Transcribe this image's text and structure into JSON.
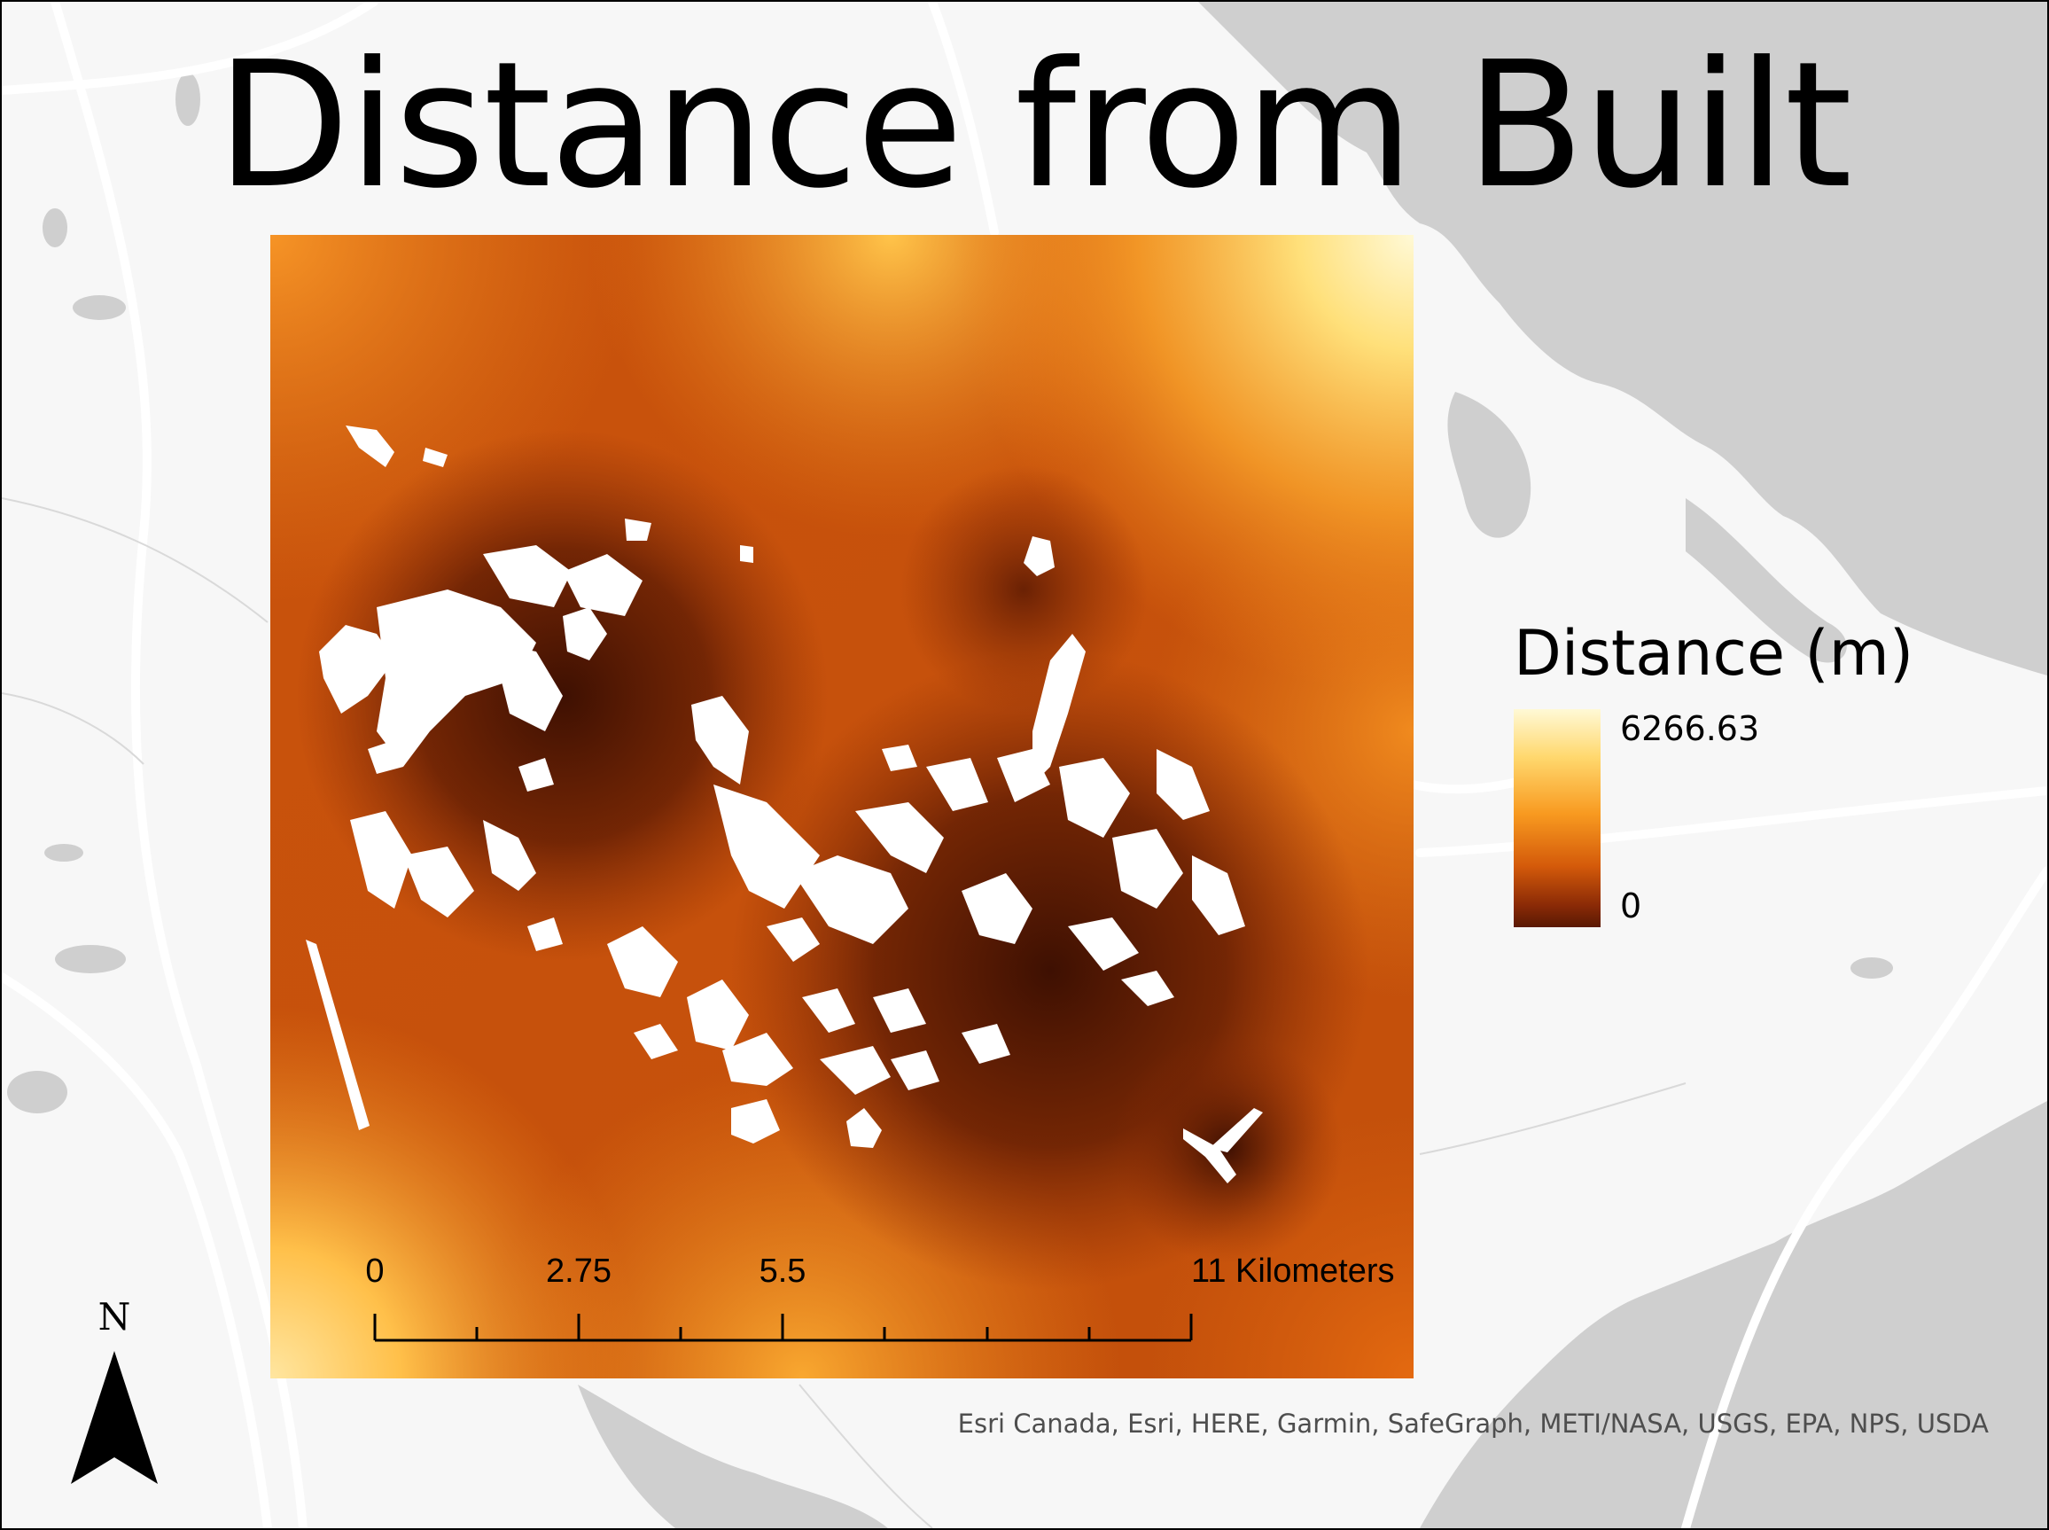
{
  "map": {
    "title": "Distance from Built",
    "colors": {
      "basemap_land": "#f7f7f7",
      "basemap_water": "#cfcfcf",
      "roads": "#ffffff",
      "built_mask": "#ffffff",
      "ramp_high": "#fff9d6",
      "ramp_mid": "#f89a20",
      "ramp_low": "#5a1904"
    }
  },
  "legend": {
    "title": "Distance (m)",
    "max_label": "6266.63",
    "min_label": "0"
  },
  "scalebar": {
    "labels": [
      "0",
      "2.75",
      "5.5",
      "11 Kilometers"
    ]
  },
  "north_arrow": {
    "letter": "N",
    "icon": "north-arrow-icon"
  },
  "attribution": "Esri Canada, Esri, HERE, Garmin, SafeGraph, METI/NASA, USGS, EPA, NPS, USDA"
}
